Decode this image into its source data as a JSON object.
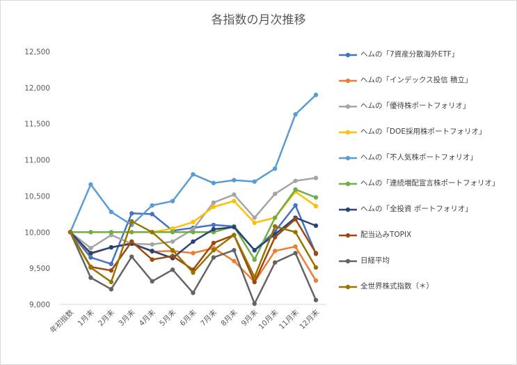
{
  "chart_data": {
    "type": "line",
    "title": "各指数の月次推移",
    "xlabel": "",
    "ylabel": "",
    "ylim": [
      9000,
      12500
    ],
    "yticks": [
      9000,
      9500,
      10000,
      10500,
      11000,
      11500,
      12000,
      12500
    ],
    "ytick_labels": [
      "9,000",
      "9,500",
      "10,000",
      "10,500",
      "11,000",
      "11,500",
      "12,000",
      "12,500"
    ],
    "grid": false,
    "legend_position": "right",
    "categories": [
      "年初指数",
      "1月末",
      "2月末",
      "3月末",
      "4月末",
      "5月末",
      "6月末",
      "7月末",
      "8月末",
      "9月末",
      "10月末",
      "11月末",
      "12月末"
    ],
    "series": [
      {
        "name": "ヘムの「7資産分散海外ETF」",
        "color": "#4472c4",
        "values": [
          10000,
          9650,
          9560,
          10260,
          10250,
          10020,
          10060,
          10100,
          10080,
          9750,
          10010,
          10370,
          9700
        ]
      },
      {
        "name": "ヘムの「インデックス投信 積立」",
        "color": "#ed7d31",
        "values": [
          10000,
          9700,
          9790,
          9850,
          9730,
          9740,
          9710,
          9780,
          9600,
          9310,
          9740,
          9800,
          9330
        ]
      },
      {
        "name": "ヘムの「優待株ポートフォリオ」",
        "color": "#a5a5a5",
        "values": [
          10000,
          9780,
          9960,
          9840,
          9830,
          9870,
          10040,
          10410,
          10520,
          10200,
          10530,
          10710,
          10750
        ]
      },
      {
        "name": "ヘムの「DOE採用株ポートフォリオ」",
        "color": "#ffc000",
        "values": [
          10000,
          10000,
          10000,
          10000,
          10000,
          10050,
          10140,
          10350,
          10430,
          10130,
          10200,
          10560,
          10360
        ]
      },
      {
        "name": "ヘムの「不人気株ポートフォリオ」",
        "color": "#5b9bd5",
        "values": [
          10000,
          10660,
          10280,
          10100,
          10370,
          10430,
          10800,
          10680,
          10720,
          10700,
          10880,
          11630,
          11900
        ]
      },
      {
        "name": "ヘムの「連続増配宣言株ポートフォリオ」",
        "color": "#70ad47",
        "values": [
          10000,
          10000,
          10000,
          10000,
          10000,
          10000,
          10000,
          10000,
          10080,
          9620,
          10200,
          10590,
          10480
        ]
      },
      {
        "name": "ヘムの「全投資 ポートフォリオ」",
        "color": "#264478",
        "values": [
          10000,
          9710,
          9790,
          9840,
          9740,
          9640,
          9870,
          10040,
          10070,
          9750,
          9970,
          10200,
          10090
        ]
      },
      {
        "name": "配当込みTOPIX",
        "color": "#9e480e",
        "values": [
          10000,
          9520,
          9470,
          9870,
          9620,
          9670,
          9480,
          9850,
          9960,
          9310,
          9930,
          10180,
          9710
        ]
      },
      {
        "name": "日経平均",
        "color": "#636363",
        "values": [
          10000,
          9370,
          9210,
          9660,
          9320,
          9480,
          9160,
          9650,
          9750,
          9010,
          9580,
          9710,
          9060
        ]
      },
      {
        "name": "全世界株式指数（＊）",
        "color": "#997300",
        "values": [
          10000,
          9510,
          9310,
          10150,
          10000,
          9750,
          9440,
          9750,
          9960,
          9380,
          10080,
          10000,
          9510
        ]
      }
    ]
  }
}
